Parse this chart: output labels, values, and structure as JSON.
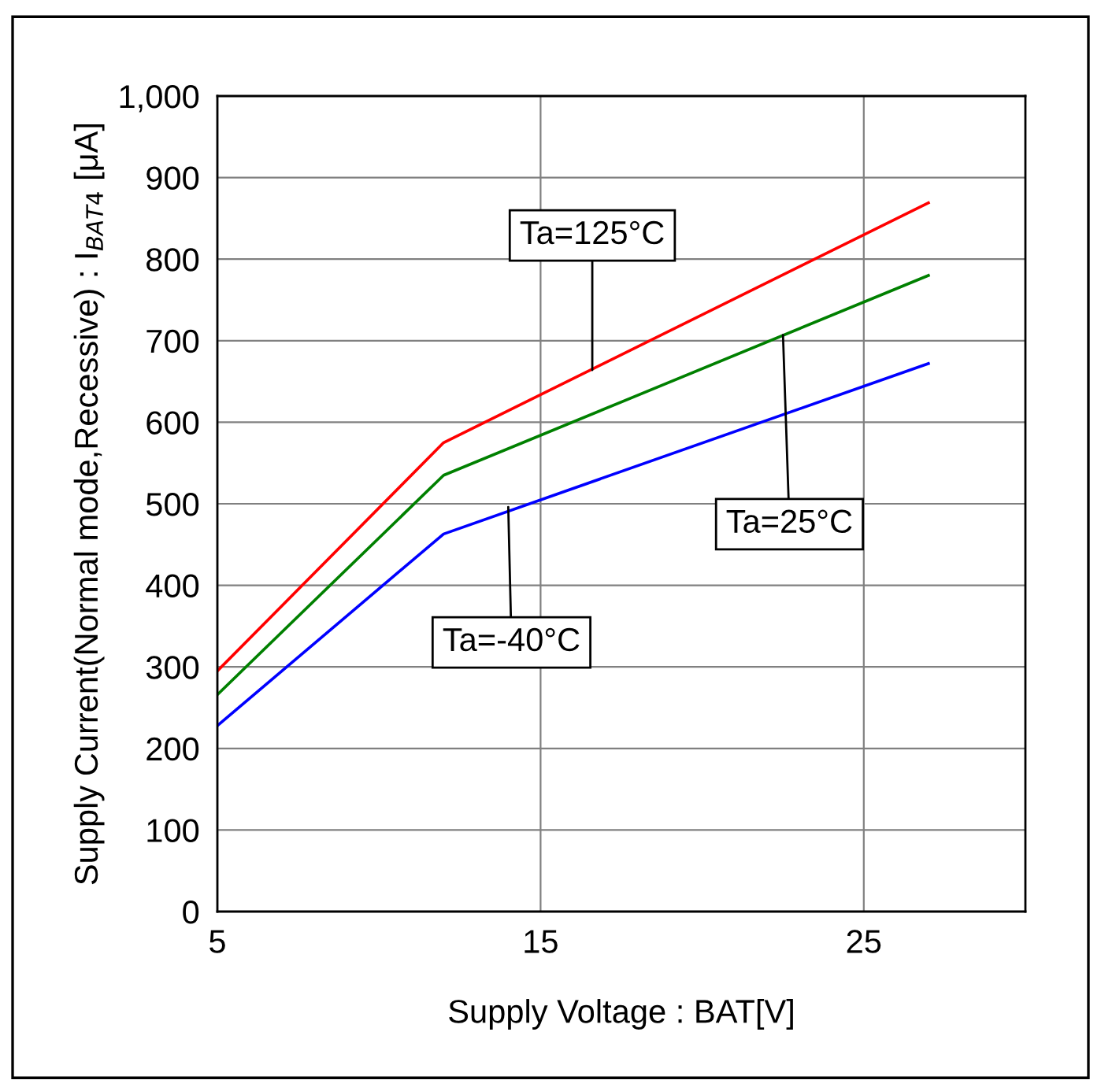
{
  "chart_data": {
    "type": "line",
    "xlabel": "Supply Voltage : BAT[V]",
    "ylabel": "Supply Current(Normal mode,Recessive) : I$_{BAT4}$ [μA]",
    "x": [
      5,
      12,
      27
    ],
    "series": [
      {
        "color": "#ff0000",
        "values": [
          295,
          575,
          869
        ]
      },
      {
        "color": "#008000",
        "values": [
          266,
          535,
          780
        ]
      },
      {
        "color": "#0000ff",
        "values": [
          228,
          463,
          672
        ]
      }
    ],
    "annotations": [
      {
        "text": "Ta=125°C",
        "x": 16.6,
        "y": 664
      },
      {
        "text": "Ta=25°C",
        "x": 22.5,
        "y": 707
      },
      {
        "text": "Ta=-40°C",
        "x": 14.0,
        "y": 496
      }
    ],
    "xlim": [
      5,
      30
    ],
    "xticks": [
      5,
      15,
      25
    ],
    "ylim": [
      0,
      1000
    ],
    "yticks": [
      0,
      100,
      200,
      300,
      400,
      500,
      600,
      700,
      800,
      900,
      {
        "value": 1000,
        "label": "1,000"
      }
    ],
    "grid": true,
    "marker": "none",
    "line_style": "solid",
    "legend": false
  }
}
